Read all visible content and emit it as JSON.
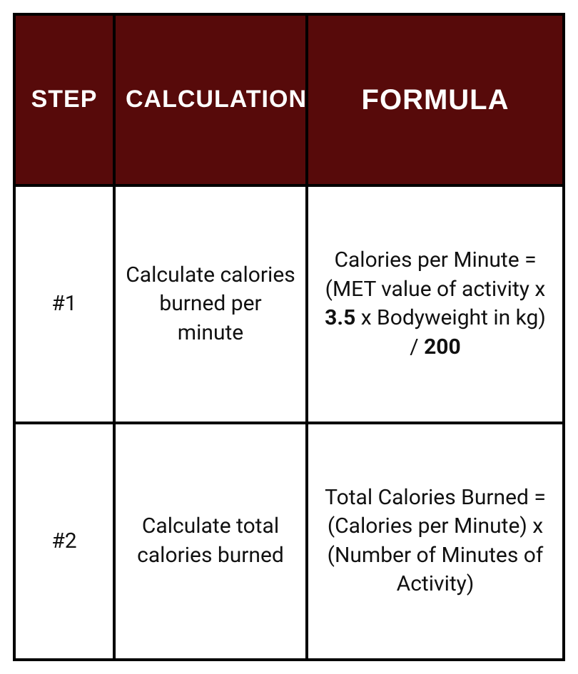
{
  "table": {
    "header_bg": "#570a0a",
    "header_fg": "#ffffff",
    "border_color": "#000000",
    "columns": [
      {
        "label": "STEP",
        "key": "step"
      },
      {
        "label": "CALCULATION",
        "key": "calculation"
      },
      {
        "label": "FORMULA",
        "key": "formula"
      }
    ],
    "rows": [
      {
        "step": "#1",
        "calculation": "Calculate calories burned per minute",
        "formula_html": "Calories per Minute = (MET value of activity x <b>3.5</b> x Bodyweight in kg) / <b>200</b>"
      },
      {
        "step": "#2",
        "calculation": "Calculate total calories burned",
        "formula_html": "Total Calories Burned = (Calories per Minute) x (Number of Minutes of Activity)"
      }
    ]
  }
}
